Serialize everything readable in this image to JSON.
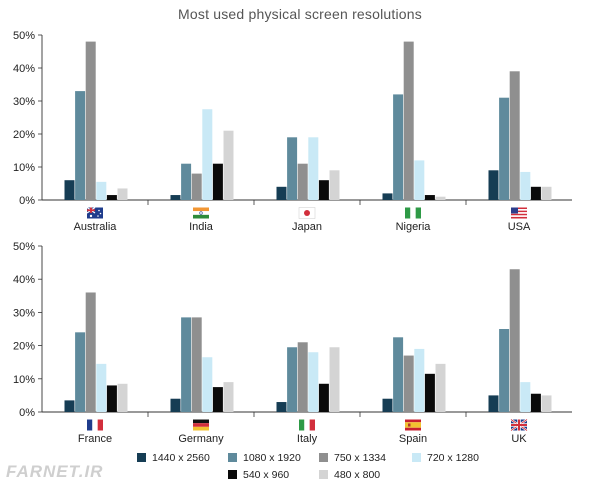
{
  "title": "Most used physical screen resolutions",
  "watermark": "FARNET.IR",
  "chart_data": [
    {
      "type": "bar",
      "categories": [
        "Australia",
        "India",
        "Japan",
        "Nigeria",
        "USA"
      ],
      "flags": [
        "flag-australia-icon",
        "flag-india-icon",
        "flag-japan-icon",
        "flag-nigeria-icon",
        "flag-usa-icon"
      ],
      "ylim": [
        0,
        50
      ],
      "yticks": [
        "0%",
        "10%",
        "20%",
        "30%",
        "40%",
        "50%"
      ],
      "grid": false,
      "series": [
        {
          "name": "1440 x 2560",
          "values": [
            6,
            1.5,
            4,
            2,
            9
          ]
        },
        {
          "name": "1080 x 1920",
          "values": [
            33,
            11,
            19,
            32,
            31
          ]
        },
        {
          "name": "750 x 1334",
          "values": [
            48,
            8,
            11,
            48,
            39
          ]
        },
        {
          "name": "720 x 1280",
          "values": [
            5.5,
            27.5,
            19,
            12,
            8.5
          ]
        },
        {
          "name": "540 x 960",
          "values": [
            1.5,
            11,
            6,
            1.5,
            4
          ]
        },
        {
          "name": "480 x 800",
          "values": [
            3.5,
            21,
            9,
            1,
            4
          ]
        }
      ]
    },
    {
      "type": "bar",
      "categories": [
        "France",
        "Germany",
        "Italy",
        "Spain",
        "UK"
      ],
      "flags": [
        "flag-france-icon",
        "flag-germany-icon",
        "flag-italy-icon",
        "flag-spain-icon",
        "flag-uk-icon"
      ],
      "ylim": [
        0,
        50
      ],
      "yticks": [
        "0%",
        "10%",
        "20%",
        "30%",
        "40%",
        "50%"
      ],
      "grid": false,
      "series": [
        {
          "name": "1440 x 2560",
          "values": [
            3.5,
            4,
            3,
            4,
            5
          ]
        },
        {
          "name": "1080 x 1920",
          "values": [
            24,
            28.5,
            19.5,
            22.5,
            25
          ]
        },
        {
          "name": "750 x 1334",
          "values": [
            36,
            28.5,
            21,
            17,
            43
          ]
        },
        {
          "name": "720 x 1280",
          "values": [
            14.5,
            16.5,
            18,
            19,
            9
          ]
        },
        {
          "name": "540 x 960",
          "values": [
            8,
            7.5,
            8.5,
            11.5,
            5.5
          ]
        },
        {
          "name": "480 x 800",
          "values": [
            8.5,
            9,
            19.5,
            14.5,
            5
          ]
        }
      ]
    }
  ],
  "colors": [
    "#163d54",
    "#5f8a9c",
    "#8f8f8f",
    "#c9e9f6",
    "#0a0a0a",
    "#d4d4d4"
  ],
  "legend": {
    "placement": "bottom",
    "items": [
      "1440 x 2560",
      "1080 x 1920",
      "750 x 1334",
      "720 x 1280",
      "540 x 960",
      "480 x 800"
    ]
  }
}
